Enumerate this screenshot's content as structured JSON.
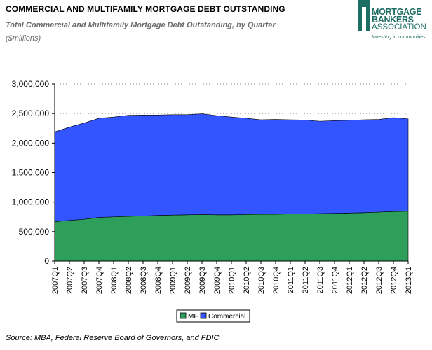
{
  "header": {
    "title": "COMMERCIAL AND MULTIFAMILY MORTGAGE DEBT OUTSTANDING",
    "subtitle": "Total Commercial and Multifamily Mortgage Debt Outstanding, by Quarter",
    "units": "($millions)"
  },
  "logo": {
    "line1": "MORTGAGE",
    "line2": "BANKERS",
    "line3": "ASSOCIATION",
    "tagline": "Investing in communities",
    "color": "#1f6e64"
  },
  "footer": {
    "source": "Source:  MBA, Federal Reserve Board of Governors, and FDIC"
  },
  "chart_data": {
    "type": "area",
    "stacked": true,
    "categories": [
      "2007Q1",
      "2007Q2",
      "2007Q3",
      "2007Q4",
      "2008Q1",
      "2008Q2",
      "2008Q3",
      "2008Q4",
      "2009Q1",
      "2009Q2",
      "2009Q3",
      "2009Q4",
      "2010Q1",
      "2010Q2",
      "2010Q3",
      "2010Q4",
      "2011Q1",
      "2011Q2",
      "2011Q3",
      "2011Q4",
      "2012Q1",
      "2012Q2",
      "2012Q3",
      "2012Q4",
      "2013Q1"
    ],
    "series": [
      {
        "name": "MF",
        "color": "#2e9e5b",
        "values": [
          670000,
          690000,
          710000,
          740000,
          750000,
          760000,
          765000,
          775000,
          780000,
          785000,
          790000,
          785000,
          785000,
          790000,
          795000,
          795000,
          800000,
          800000,
          805000,
          810000,
          815000,
          820000,
          830000,
          840000,
          845000
        ]
      },
      {
        "name": "Commercial",
        "color": "#3355ff",
        "values": [
          1520000,
          1580000,
          1630000,
          1680000,
          1690000,
          1710000,
          1710000,
          1700000,
          1700000,
          1695000,
          1705000,
          1680000,
          1655000,
          1630000,
          1600000,
          1605000,
          1595000,
          1590000,
          1565000,
          1570000,
          1570000,
          1575000,
          1570000,
          1590000,
          1565000
        ]
      }
    ],
    "yticks": [
      0,
      500000,
      1000000,
      1500000,
      2000000,
      2500000,
      3000000
    ],
    "ytick_labels": [
      "0",
      "500,000",
      "1,000,000",
      "1,500,000",
      "2,000,000",
      "2,500,000",
      "3,000,000"
    ],
    "ylim": [
      0,
      3000000
    ],
    "grid": "y-dotted",
    "legend_position": "bottom-center"
  }
}
